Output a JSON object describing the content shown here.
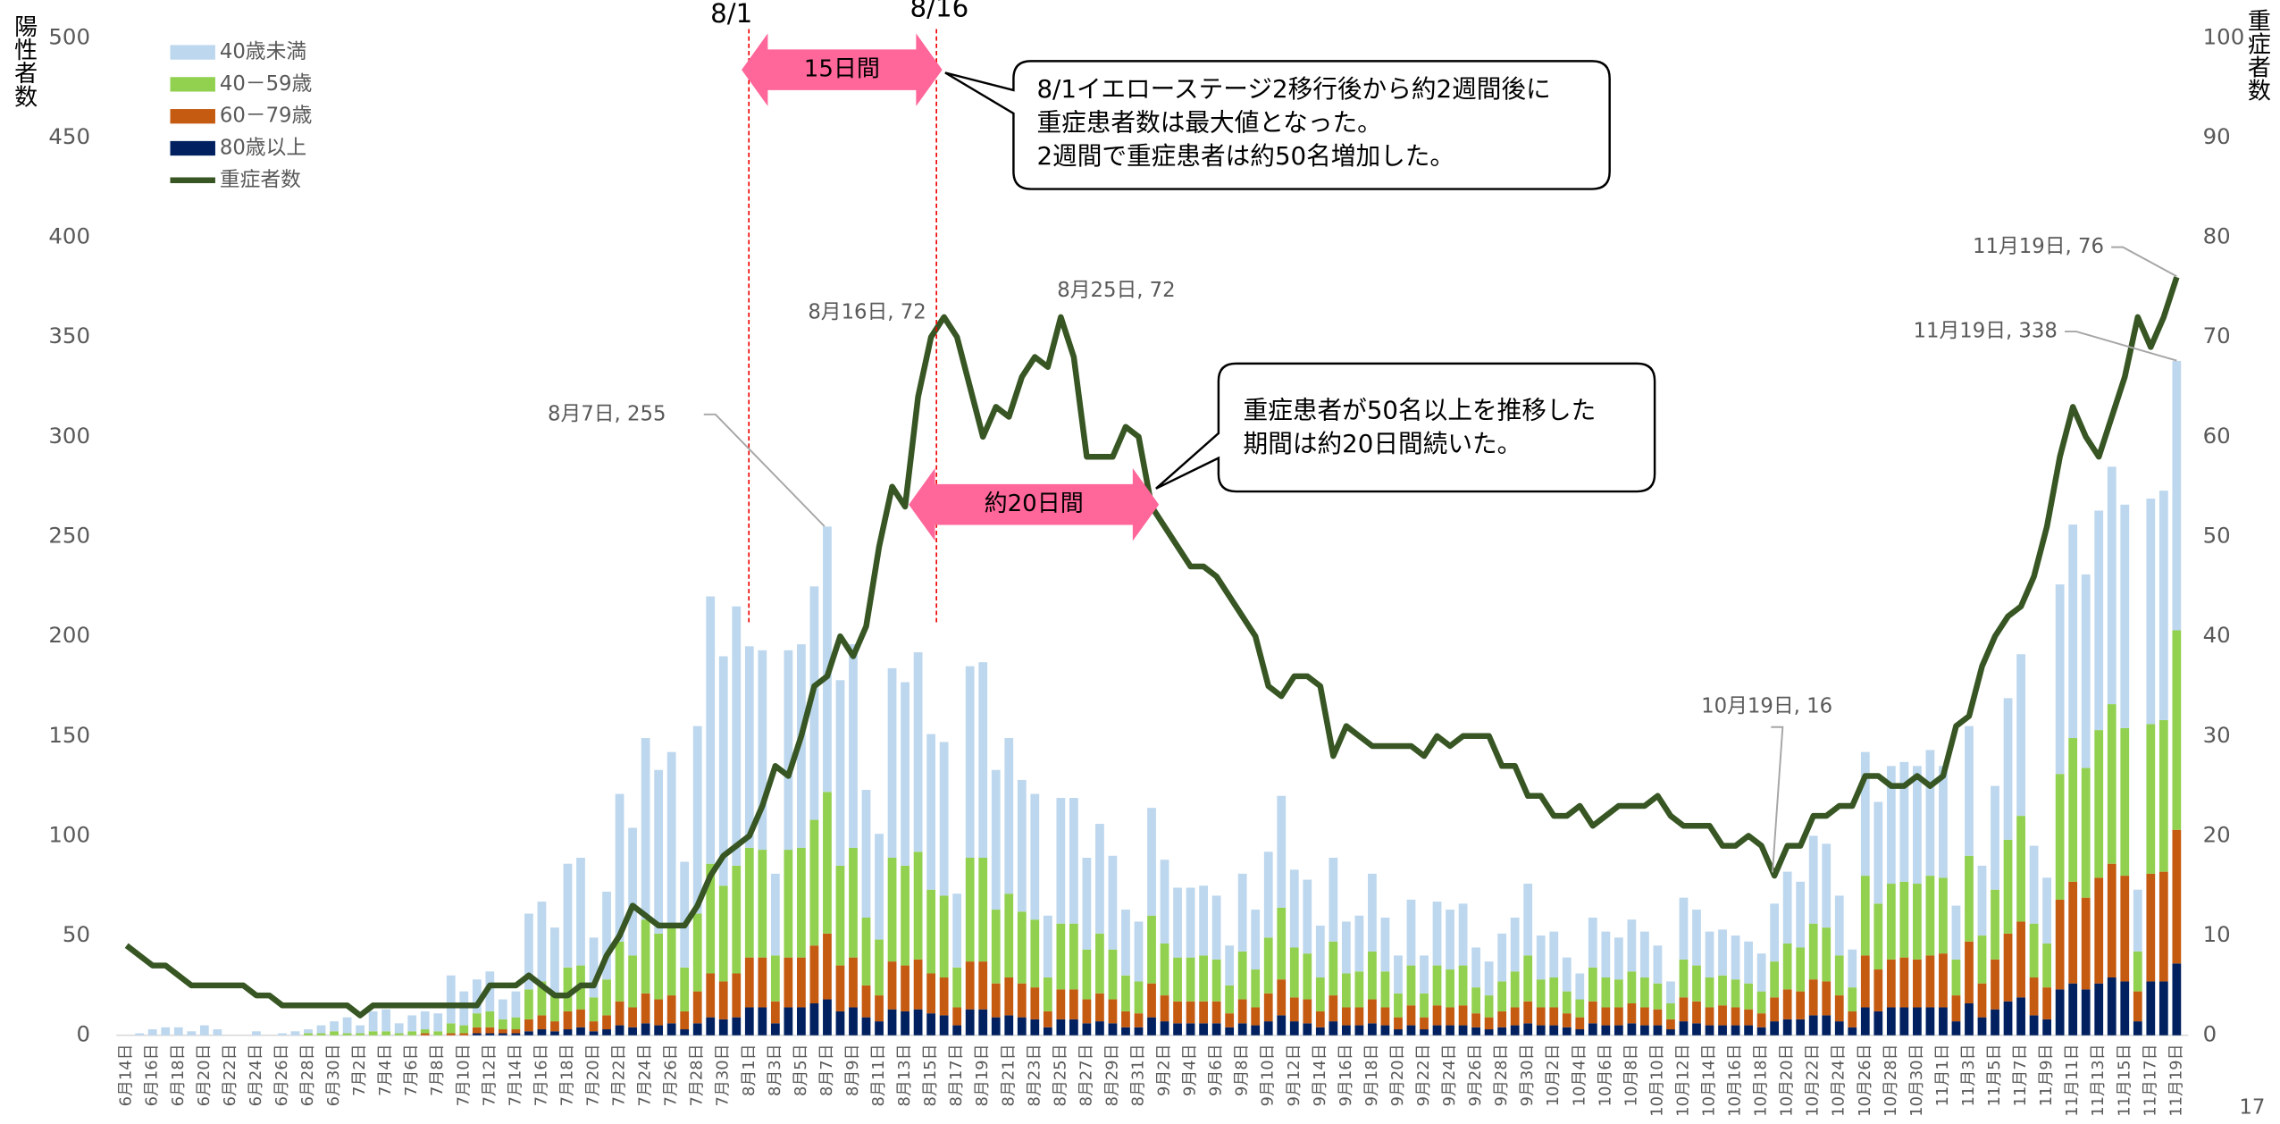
{
  "chart_data": {
    "type": "bar",
    "stacked": true,
    "y_label": "陽性者数",
    "y2_label": "重症者数",
    "categories": [
      "6月14日",
      null,
      "6月16日",
      null,
      "6月18日",
      null,
      "6月20日",
      null,
      "6月22日",
      null,
      "6月24日",
      null,
      "6月26日",
      null,
      "6月28日",
      null,
      "6月30日",
      null,
      "7月2日",
      null,
      "7月4日",
      null,
      "7月6日",
      null,
      "7月8日",
      null,
      "7月10日",
      null,
      "7月12日",
      null,
      "7月14日",
      null,
      "7月16日",
      null,
      "7月18日",
      null,
      "7月20日",
      null,
      "7月22日",
      null,
      "7月24日",
      null,
      "7月26日",
      null,
      "7月28日",
      null,
      "7月30日",
      null,
      "8月1日",
      null,
      "8月3日",
      null,
      "8月5日",
      null,
      "8月7日",
      null,
      "8月9日",
      null,
      "8月11日",
      null,
      "8月13日",
      null,
      "8月15日",
      null,
      "8月17日",
      null,
      "8月19日",
      null,
      "8月21日",
      null,
      "8月23日",
      null,
      "8月25日",
      null,
      "8月27日",
      null,
      "8月29日",
      null,
      "8月31日",
      null,
      "9月2日",
      null,
      "9月4日",
      null,
      "9月6日",
      null,
      "9月8日",
      null,
      "9月10日",
      null,
      "9月12日",
      null,
      "9月14日",
      null,
      "9月16日",
      null,
      "9月18日",
      null,
      "9月20日",
      null,
      "9月22日",
      null,
      "9月24日",
      null,
      "9月26日",
      null,
      "9月28日",
      null,
      "9月30日",
      null,
      "10月2日",
      null,
      "10月4日",
      null,
      "10月6日",
      null,
      "10月8日",
      null,
      "10月10日",
      null,
      "10月12日",
      null,
      "10月14日",
      null,
      "10月16日",
      null,
      "10月18日",
      null,
      "10月20日",
      null,
      "10月22日",
      null,
      "10月24日",
      null,
      "10月26日",
      null,
      "10月28日",
      null,
      "10月30日",
      null,
      "11月1日",
      null,
      "11月3日",
      null,
      "11月5日",
      null,
      "11月7日",
      null,
      "11月9日",
      null,
      "11月11日",
      null,
      "11月13日",
      null,
      "11月15日",
      null,
      "11月17日",
      null,
      "11月19日"
    ],
    "series": [
      {
        "name": "40歳未満",
        "color": "#bdd7ee",
        "values": [
          0,
          1,
          3,
          4,
          4,
          2,
          5,
          3,
          0,
          0,
          2,
          0,
          1,
          2,
          2,
          4,
          5,
          8,
          4,
          10,
          11,
          5,
          8,
          9,
          9,
          24,
          17,
          17,
          20,
          10,
          13,
          38,
          40,
          33,
          52,
          54,
          30,
          44,
          74,
          64,
          91,
          82,
          86,
          53,
          94,
          134,
          115,
          130,
          101,
          100,
          41,
          100,
          102,
          117,
          133,
          93,
          102,
          64,
          53,
          95,
          92,
          100,
          78,
          77,
          37,
          96,
          98,
          70,
          78,
          66,
          63,
          31,
          63,
          63,
          46,
          55,
          47,
          33,
          30,
          54,
          42,
          35,
          35,
          35,
          32,
          20,
          39,
          30,
          43,
          56,
          39,
          37,
          26,
          42,
          26,
          28,
          39,
          27,
          19,
          33,
          19,
          32,
          30,
          31,
          20,
          17,
          24,
          27,
          36,
          22,
          23,
          17,
          13,
          25,
          23,
          21,
          26,
          23,
          19,
          11,
          31,
          28,
          23,
          23,
          22,
          21,
          19,
          29,
          36,
          33,
          44,
          42,
          30,
          19,
          62,
          51,
          59,
          60,
          59,
          63,
          56,
          27,
          65,
          35,
          52,
          71,
          81,
          39,
          33,
          95,
          107,
          97,
          110,
          119,
          112,
          31,
          113,
          115,
          135
        ]
      },
      {
        "name": "40－59歳",
        "color": "#92d050",
        "values": [
          0,
          0,
          0,
          0,
          0,
          0,
          0,
          0,
          0,
          0,
          0,
          0,
          0,
          0,
          1,
          1,
          2,
          1,
          1,
          2,
          2,
          1,
          2,
          2,
          2,
          5,
          4,
          7,
          8,
          5,
          6,
          15,
          17,
          14,
          22,
          22,
          12,
          18,
          30,
          26,
          37,
          33,
          36,
          22,
          39,
          55,
          48,
          54,
          55,
          54,
          23,
          54,
          55,
          63,
          71,
          50,
          55,
          34,
          28,
          52,
          50,
          54,
          42,
          41,
          20,
          52,
          52,
          37,
          42,
          36,
          34,
          17,
          33,
          33,
          25,
          30,
          25,
          18,
          16,
          34,
          26,
          22,
          22,
          23,
          21,
          14,
          24,
          19,
          28,
          36,
          25,
          23,
          17,
          27,
          17,
          18,
          24,
          18,
          12,
          20,
          12,
          20,
          19,
          20,
          13,
          11,
          15,
          18,
          23,
          14,
          15,
          11,
          9,
          17,
          15,
          14,
          16,
          15,
          13,
          8,
          19,
          18,
          15,
          15,
          14,
          13,
          11,
          18,
          23,
          22,
          28,
          27,
          20,
          12,
          40,
          33,
          38,
          38,
          38,
          40,
          38,
          18,
          43,
          24,
          35,
          47,
          53,
          27,
          22,
          63,
          72,
          65,
          74,
          80,
          74,
          20,
          75,
          76,
          100
        ]
      },
      {
        "name": "60－79歳",
        "color": "#c55a11",
        "values": [
          0,
          0,
          0,
          0,
          0,
          0,
          0,
          0,
          0,
          0,
          0,
          0,
          0,
          0,
          0,
          0,
          0,
          0,
          0,
          0,
          0,
          0,
          0,
          1,
          0,
          1,
          1,
          3,
          3,
          2,
          2,
          6,
          7,
          5,
          9,
          9,
          5,
          7,
          12,
          10,
          15,
          13,
          14,
          9,
          16,
          22,
          19,
          22,
          25,
          25,
          11,
          25,
          25,
          29,
          33,
          23,
          25,
          16,
          13,
          24,
          23,
          25,
          20,
          19,
          9,
          24,
          24,
          17,
          19,
          17,
          16,
          8,
          15,
          15,
          12,
          14,
          12,
          8,
          7,
          17,
          13,
          11,
          11,
          11,
          11,
          7,
          12,
          9,
          14,
          18,
          12,
          12,
          8,
          13,
          9,
          9,
          12,
          9,
          6,
          10,
          6,
          10,
          9,
          10,
          7,
          6,
          8,
          9,
          11,
          9,
          9,
          7,
          6,
          11,
          9,
          9,
          10,
          9,
          8,
          5,
          12,
          11,
          9,
          10,
          9,
          8,
          7,
          12,
          15,
          14,
          18,
          17,
          13,
          8,
          26,
          21,
          24,
          25,
          24,
          26,
          27,
          13,
          31,
          17,
          25,
          34,
          38,
          19,
          16,
          45,
          51,
          46,
          53,
          57,
          53,
          15,
          54,
          55,
          67
        ]
      },
      {
        "name": "80歳以上",
        "color": "#002060",
        "values": [
          0,
          0,
          0,
          0,
          0,
          0,
          0,
          0,
          0,
          0,
          0,
          0,
          0,
          0,
          0,
          0,
          0,
          0,
          0,
          0,
          0,
          0,
          0,
          0,
          0,
          0,
          0,
          1,
          1,
          1,
          1,
          2,
          3,
          2,
          3,
          4,
          2,
          3,
          5,
          4,
          6,
          5,
          6,
          3,
          6,
          9,
          8,
          9,
          14,
          14,
          6,
          14,
          14,
          16,
          18,
          12,
          14,
          9,
          7,
          13,
          12,
          13,
          11,
          10,
          5,
          13,
          13,
          9,
          10,
          9,
          8,
          4,
          8,
          8,
          6,
          7,
          6,
          4,
          4,
          9,
          7,
          6,
          6,
          6,
          6,
          4,
          6,
          5,
          7,
          10,
          7,
          6,
          4,
          7,
          5,
          5,
          6,
          5,
          3,
          5,
          3,
          5,
          5,
          5,
          4,
          3,
          4,
          5,
          6,
          5,
          5,
          4,
          3,
          6,
          5,
          5,
          6,
          5,
          5,
          3,
          7,
          6,
          5,
          5,
          5,
          5,
          4,
          7,
          8,
          8,
          10,
          10,
          7,
          4,
          14,
          12,
          14,
          14,
          14,
          14,
          14,
          7,
          16,
          9,
          13,
          17,
          19,
          10,
          8,
          23,
          26,
          23,
          26,
          29,
          27,
          7,
          27,
          27,
          36
        ]
      },
      {
        "name": "重症者数",
        "color": "#375623",
        "type": "line",
        "axis": "y2",
        "values": [
          9,
          8,
          7,
          7,
          6,
          5,
          5,
          5,
          5,
          5,
          4,
          4,
          3,
          3,
          3,
          3,
          3,
          3,
          2,
          3,
          3,
          3,
          3,
          3,
          3,
          3,
          3,
          3,
          5,
          5,
          5,
          6,
          5,
          4,
          4,
          5,
          5,
          8,
          10,
          13,
          12,
          11,
          11,
          11,
          13,
          16,
          18,
          19,
          20,
          23,
          27,
          26,
          30,
          35,
          36,
          40,
          38,
          41,
          49,
          55,
          53,
          64,
          70,
          72,
          70,
          65,
          60,
          63,
          62,
          66,
          68,
          67,
          72,
          68,
          58,
          58,
          58,
          61,
          60,
          53,
          51,
          49,
          47,
          47,
          46,
          44,
          42,
          40,
          35,
          34,
          36,
          36,
          35,
          28,
          31,
          30,
          29,
          29,
          29,
          29,
          28,
          30,
          29,
          30,
          30,
          30,
          27,
          27,
          24,
          24,
          22,
          22,
          23,
          21,
          22,
          23,
          23,
          23,
          24,
          22,
          21,
          21,
          21,
          19,
          19,
          20,
          19,
          16,
          19,
          19,
          22,
          22,
          23,
          23,
          26,
          26,
          25,
          25,
          26,
          25,
          26,
          31,
          32,
          37,
          40,
          42,
          43,
          46,
          51,
          58,
          63,
          60,
          58,
          62,
          66,
          72,
          69,
          72,
          76
        ]
      }
    ],
    "ylim": [
      0,
      500
    ],
    "yticks": [
      0,
      50,
      100,
      150,
      200,
      250,
      300,
      350,
      400,
      450,
      500
    ],
    "y2lim": [
      0,
      100
    ],
    "y2ticks": [
      0,
      10,
      20,
      30,
      40,
      50,
      60,
      70,
      80,
      90,
      100
    ],
    "legend": "upper left",
    "markers": [
      "8/1",
      "8/16"
    ],
    "spans": [
      "15日間",
      "約20日間"
    ],
    "callouts": [
      [
        "8/1イエローステージ2移行後から約2週間後に",
        "重症患者数は最大値となった。",
        "2週間で重症患者は約50名増加した。"
      ],
      [
        "重症患者が50名以上を推移した",
        "期間は約20日間続いた。"
      ]
    ],
    "point_labels": [
      "8月7日, 255",
      "8月16日, 72",
      "8月25日, 72",
      "10月19日, 16",
      "11月19日, 76",
      "11月19日, 338"
    ]
  },
  "page_number": "17"
}
